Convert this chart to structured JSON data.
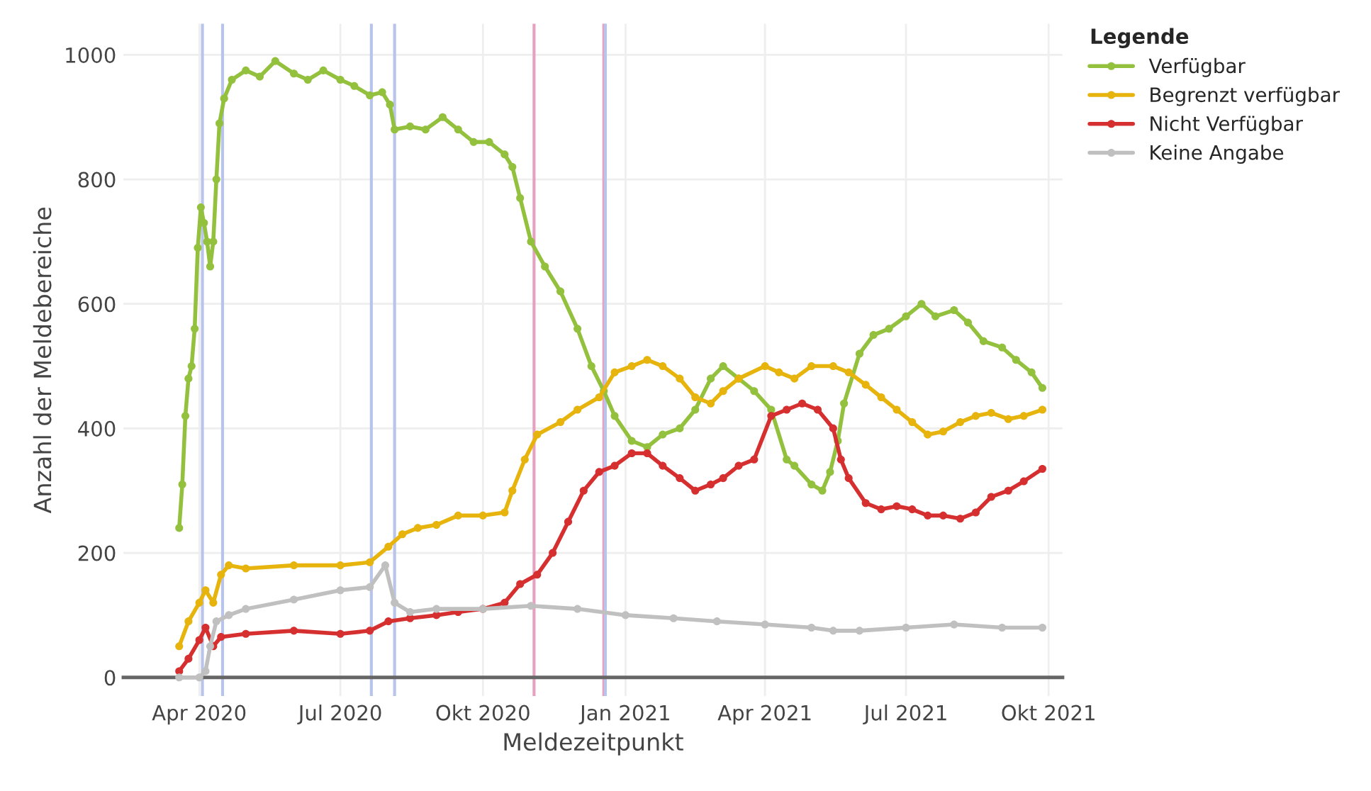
{
  "chart_data": {
    "type": "line",
    "xlabel": "Meldezeitpunkt",
    "ylabel": "Anzahl der Meldebereiche",
    "legend_title": "Legende",
    "legend": "top right",
    "grid": true,
    "marker": "circle",
    "line_style": "solid",
    "xlim": [
      "2020-02-12",
      "2021-10-10"
    ],
    "ylim": [
      -30,
      1050
    ],
    "xticks": [
      {
        "value": "2020-04-01",
        "label": "Apr 2020"
      },
      {
        "value": "2020-07-01",
        "label": "Jul 2020"
      },
      {
        "value": "2020-10-01",
        "label": "Okt 2020"
      },
      {
        "value": "2021-01-01",
        "label": "Jan 2021"
      },
      {
        "value": "2021-04-01",
        "label": "Apr 2021"
      },
      {
        "value": "2021-07-01",
        "label": "Jul 2021"
      },
      {
        "value": "2021-10-01",
        "label": "Okt 2021"
      }
    ],
    "yticks": [
      0,
      200,
      400,
      600,
      800,
      1000
    ],
    "ref_lines": [
      {
        "axis": "x",
        "value": "2020-04-03",
        "color": "#b8c4ea"
      },
      {
        "axis": "x",
        "value": "2020-04-16",
        "color": "#b8c4ea"
      },
      {
        "axis": "x",
        "value": "2020-07-21",
        "color": "#b8c4ea"
      },
      {
        "axis": "x",
        "value": "2020-08-05",
        "color": "#b8c4ea"
      },
      {
        "axis": "x",
        "value": "2020-11-03",
        "color": "#e8a0c0"
      },
      {
        "axis": "x",
        "value": "2020-12-18",
        "color": "#e8a0c0"
      },
      {
        "axis": "x",
        "value": "2020-12-19",
        "color": "#b8c4ea"
      }
    ],
    "series": [
      {
        "name": "Verfügbar",
        "color": "#93c13e",
        "x": [
          "2020-03-19",
          "2020-03-21",
          "2020-03-23",
          "2020-03-25",
          "2020-03-27",
          "2020-03-29",
          "2020-03-31",
          "2020-04-02",
          "2020-04-04",
          "2020-04-06",
          "2020-04-08",
          "2020-04-10",
          "2020-04-12",
          "2020-04-14",
          "2020-04-17",
          "2020-04-22",
          "2020-05-01",
          "2020-05-10",
          "2020-05-20",
          "2020-06-01",
          "2020-06-10",
          "2020-06-20",
          "2020-07-01",
          "2020-07-10",
          "2020-07-20",
          "2020-07-28",
          "2020-08-02",
          "2020-08-05",
          "2020-08-15",
          "2020-08-25",
          "2020-09-05",
          "2020-09-15",
          "2020-09-25",
          "2020-10-05",
          "2020-10-15",
          "2020-10-20",
          "2020-10-25",
          "2020-11-01",
          "2020-11-10",
          "2020-11-20",
          "2020-12-01",
          "2020-12-10",
          "2020-12-18",
          "2020-12-25",
          "2021-01-05",
          "2021-01-15",
          "2021-01-25",
          "2021-02-05",
          "2021-02-15",
          "2021-02-25",
          "2021-03-05",
          "2021-03-15",
          "2021-03-25",
          "2021-04-05",
          "2021-04-15",
          "2021-04-20",
          "2021-05-01",
          "2021-05-08",
          "2021-05-13",
          "2021-05-18",
          "2021-05-22",
          "2021-06-01",
          "2021-06-10",
          "2021-06-20",
          "2021-07-01",
          "2021-07-11",
          "2021-07-20",
          "2021-08-01",
          "2021-08-10",
          "2021-08-20",
          "2021-09-01",
          "2021-09-10",
          "2021-09-20",
          "2021-09-27"
        ],
        "values": [
          240,
          310,
          420,
          480,
          500,
          560,
          690,
          755,
          730,
          700,
          660,
          700,
          800,
          890,
          930,
          960,
          975,
          965,
          990,
          970,
          960,
          975,
          960,
          950,
          935,
          940,
          920,
          880,
          885,
          880,
          900,
          880,
          860,
          860,
          840,
          820,
          770,
          700,
          660,
          620,
          560,
          500,
          460,
          420,
          380,
          370,
          390,
          400,
          430,
          480,
          500,
          480,
          460,
          430,
          350,
          340,
          310,
          300,
          330,
          380,
          440,
          520,
          550,
          560,
          580,
          600,
          580,
          590,
          570,
          540,
          530,
          510,
          490,
          465
        ]
      },
      {
        "name": "Begrenzt verfügbar",
        "color": "#e6b40c",
        "x": [
          "2020-03-19",
          "2020-03-25",
          "2020-04-01",
          "2020-04-05",
          "2020-04-10",
          "2020-04-15",
          "2020-04-20",
          "2020-05-01",
          "2020-06-01",
          "2020-07-01",
          "2020-07-20",
          "2020-08-01",
          "2020-08-10",
          "2020-08-20",
          "2020-09-01",
          "2020-09-15",
          "2020-10-01",
          "2020-10-15",
          "2020-10-20",
          "2020-10-28",
          "2020-11-05",
          "2020-11-20",
          "2020-12-01",
          "2020-12-15",
          "2020-12-25",
          "2021-01-05",
          "2021-01-15",
          "2021-01-25",
          "2021-02-05",
          "2021-02-15",
          "2021-02-25",
          "2021-03-05",
          "2021-03-15",
          "2021-04-01",
          "2021-04-10",
          "2021-04-20",
          "2021-05-01",
          "2021-05-15",
          "2021-05-25",
          "2021-06-05",
          "2021-06-15",
          "2021-06-25",
          "2021-07-05",
          "2021-07-15",
          "2021-07-25",
          "2021-08-05",
          "2021-08-15",
          "2021-08-25",
          "2021-09-05",
          "2021-09-15",
          "2021-09-27"
        ],
        "values": [
          50,
          90,
          120,
          140,
          120,
          165,
          180,
          175,
          180,
          180,
          185,
          210,
          230,
          240,
          245,
          260,
          260,
          265,
          300,
          350,
          390,
          410,
          430,
          450,
          490,
          500,
          510,
          500,
          480,
          450,
          440,
          460,
          480,
          500,
          490,
          480,
          500,
          500,
          490,
          470,
          450,
          430,
          410,
          390,
          395,
          410,
          420,
          425,
          415,
          420,
          430
        ]
      },
      {
        "name": "Nicht Verfügbar",
        "color": "#d62f2f",
        "x": [
          "2020-03-19",
          "2020-03-25",
          "2020-04-01",
          "2020-04-05",
          "2020-04-10",
          "2020-04-15",
          "2020-05-01",
          "2020-06-01",
          "2020-07-01",
          "2020-07-20",
          "2020-08-01",
          "2020-08-15",
          "2020-09-01",
          "2020-09-15",
          "2020-10-01",
          "2020-10-15",
          "2020-10-25",
          "2020-11-05",
          "2020-11-15",
          "2020-11-25",
          "2020-12-05",
          "2020-12-15",
          "2020-12-25",
          "2021-01-05",
          "2021-01-15",
          "2021-01-25",
          "2021-02-05",
          "2021-02-15",
          "2021-02-25",
          "2021-03-05",
          "2021-03-15",
          "2021-03-25",
          "2021-04-05",
          "2021-04-15",
          "2021-04-25",
          "2021-05-05",
          "2021-05-15",
          "2021-05-20",
          "2021-05-25",
          "2021-06-05",
          "2021-06-15",
          "2021-06-25",
          "2021-07-05",
          "2021-07-15",
          "2021-07-25",
          "2021-08-05",
          "2021-08-15",
          "2021-08-25",
          "2021-09-05",
          "2021-09-15",
          "2021-09-27"
        ],
        "values": [
          10,
          30,
          60,
          80,
          50,
          65,
          70,
          75,
          70,
          75,
          90,
          95,
          100,
          105,
          110,
          120,
          150,
          165,
          200,
          250,
          300,
          330,
          340,
          360,
          360,
          340,
          320,
          300,
          310,
          320,
          340,
          350,
          420,
          430,
          440,
          430,
          400,
          350,
          320,
          280,
          270,
          275,
          270,
          260,
          260,
          255,
          265,
          290,
          300,
          315,
          335
        ]
      },
      {
        "name": "Keine Angabe",
        "color": "#c0c0c0",
        "x": [
          "2020-03-19",
          "2020-04-01",
          "2020-04-05",
          "2020-04-08",
          "2020-04-12",
          "2020-04-20",
          "2020-05-01",
          "2020-06-01",
          "2020-07-01",
          "2020-07-20",
          "2020-07-30",
          "2020-08-05",
          "2020-08-15",
          "2020-09-01",
          "2020-10-01",
          "2020-11-01",
          "2020-12-01",
          "2021-01-01",
          "2021-02-01",
          "2021-03-01",
          "2021-04-01",
          "2021-05-01",
          "2021-05-15",
          "2021-06-01",
          "2021-07-01",
          "2021-08-01",
          "2021-09-01",
          "2021-09-27"
        ],
        "values": [
          0,
          0,
          10,
          50,
          90,
          100,
          110,
          125,
          140,
          145,
          180,
          120,
          105,
          110,
          110,
          115,
          110,
          100,
          95,
          90,
          85,
          80,
          75,
          75,
          80,
          85,
          80,
          80
        ]
      }
    ]
  }
}
